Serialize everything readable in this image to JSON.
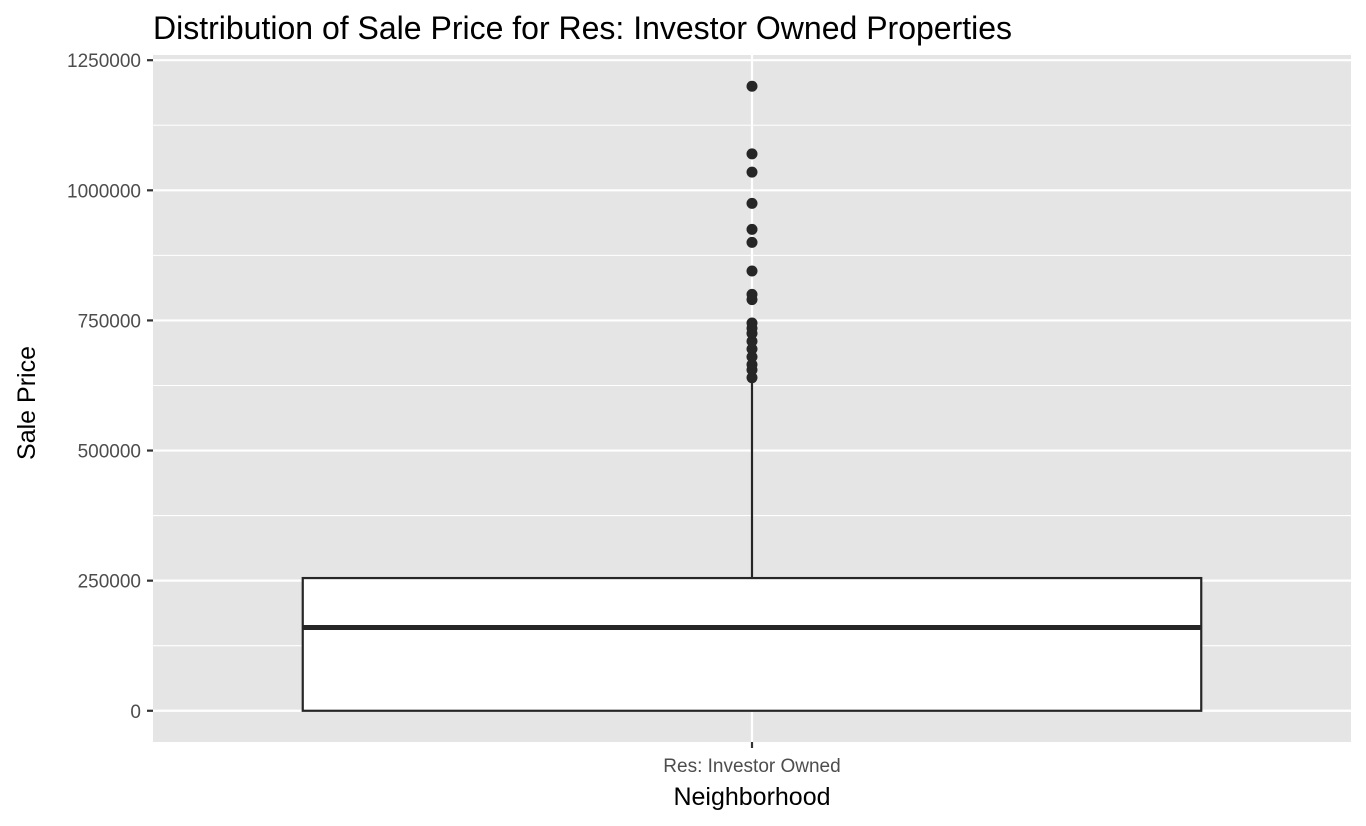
{
  "chart_data": {
    "type": "box",
    "title": "Distribution of Sale Price for Res: Investor Owned Properties",
    "xlabel": "Neighborhood",
    "ylabel": "Sale Price",
    "categories": [
      "Res: Investor Owned"
    ],
    "ylim": [
      -60000,
      1260000
    ],
    "y_ticks": [
      0,
      250000,
      500000,
      750000,
      1000000,
      1250000
    ],
    "y_tick_labels": [
      "0",
      "250000",
      "500000",
      "750000",
      "1000000",
      "1250000"
    ],
    "grid": true,
    "legend": "none",
    "boxes": [
      {
        "category": "Res: Investor Owned",
        "min": 0,
        "q1": 0,
        "median": 160000,
        "q3": 255000,
        "whisker_high": 635000,
        "outliers": [
          640000,
          655000,
          665000,
          680000,
          695000,
          710000,
          725000,
          735000,
          745000,
          790000,
          800000,
          845000,
          900000,
          925000,
          975000,
          1035000,
          1070000,
          1200000
        ]
      }
    ],
    "colors": {
      "panel_background": "#e5e5e5",
      "grid_line": "#ffffff",
      "box_fill": "#ffffff",
      "box_stroke": "#262626",
      "point": "#262626"
    }
  }
}
